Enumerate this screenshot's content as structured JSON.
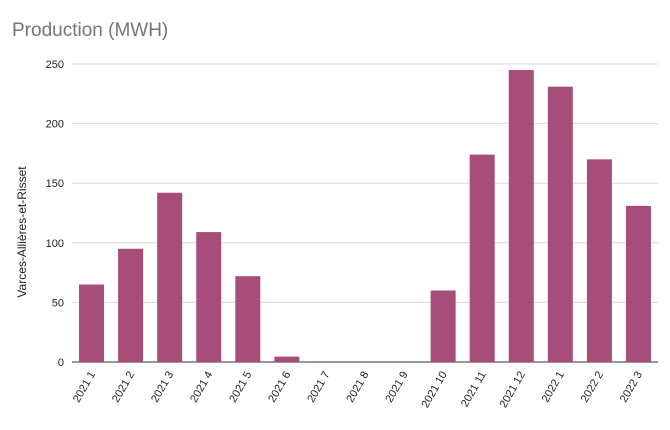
{
  "chart_data": {
    "type": "bar",
    "title": "Production (MWH)",
    "ylabel": "Varces-Allières-et-Risset",
    "xlabel": "",
    "categories": [
      "2021 1",
      "2021 2",
      "2021 3",
      "2021 4",
      "2021 5",
      "2021 6",
      "2021 7",
      "2021 8",
      "2021 9",
      "2021 10",
      "2021 11",
      "2021 12",
      "2022 1",
      "2022 2",
      "2022 3"
    ],
    "series": [
      {
        "values": [
          65,
          95,
          142,
          109,
          72,
          4.5,
          0,
          0,
          0,
          60,
          174,
          245,
          231,
          170,
          131
        ],
        "color": "#a64d79"
      }
    ],
    "ylim": [
      0,
      250
    ],
    "yticks": [
      0,
      50,
      100,
      150,
      200,
      250
    ],
    "grid": true,
    "legend": "none"
  }
}
